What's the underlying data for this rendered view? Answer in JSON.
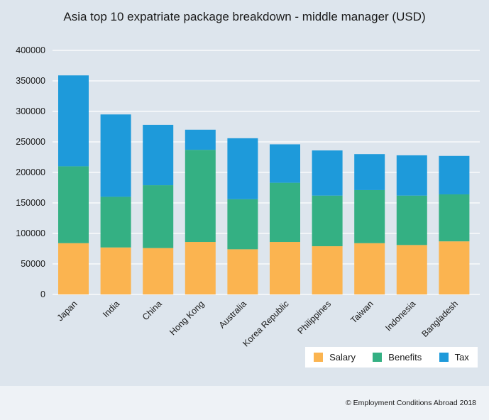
{
  "chart_data": {
    "type": "bar",
    "stacked": true,
    "title": "Asia top 10 expatriate package breakdown - middle manager (USD)",
    "categories": [
      "Japan",
      "India",
      "China",
      "Hong Kong",
      "Australia",
      "Korea Republic",
      "Philippines",
      "Taiwan",
      "Indonesia",
      "Bangladesh"
    ],
    "series": [
      {
        "name": "Salary",
        "color": "#fbb450",
        "values": [
          84000,
          77000,
          76000,
          86000,
          74000,
          86000,
          79000,
          84000,
          81000,
          87000
        ]
      },
      {
        "name": "Benefits",
        "color": "#34b083",
        "values": [
          126000,
          83000,
          103000,
          151000,
          82000,
          97000,
          83000,
          87000,
          81000,
          77000
        ]
      },
      {
        "name": "Tax",
        "color": "#1e9ada",
        "values": [
          149000,
          135000,
          99000,
          33000,
          100000,
          63000,
          74000,
          59000,
          66000,
          63000
        ]
      }
    ],
    "ylim": [
      0,
      400000
    ],
    "yticks": [
      "0",
      "50000",
      "100000",
      "150000",
      "200000",
      "250000",
      "300000",
      "350000",
      "400000"
    ],
    "grid": "horizontal",
    "legend_position": "bottom-right"
  },
  "footer": {
    "copyright": "© Employment Conditions Abroad 2018"
  }
}
